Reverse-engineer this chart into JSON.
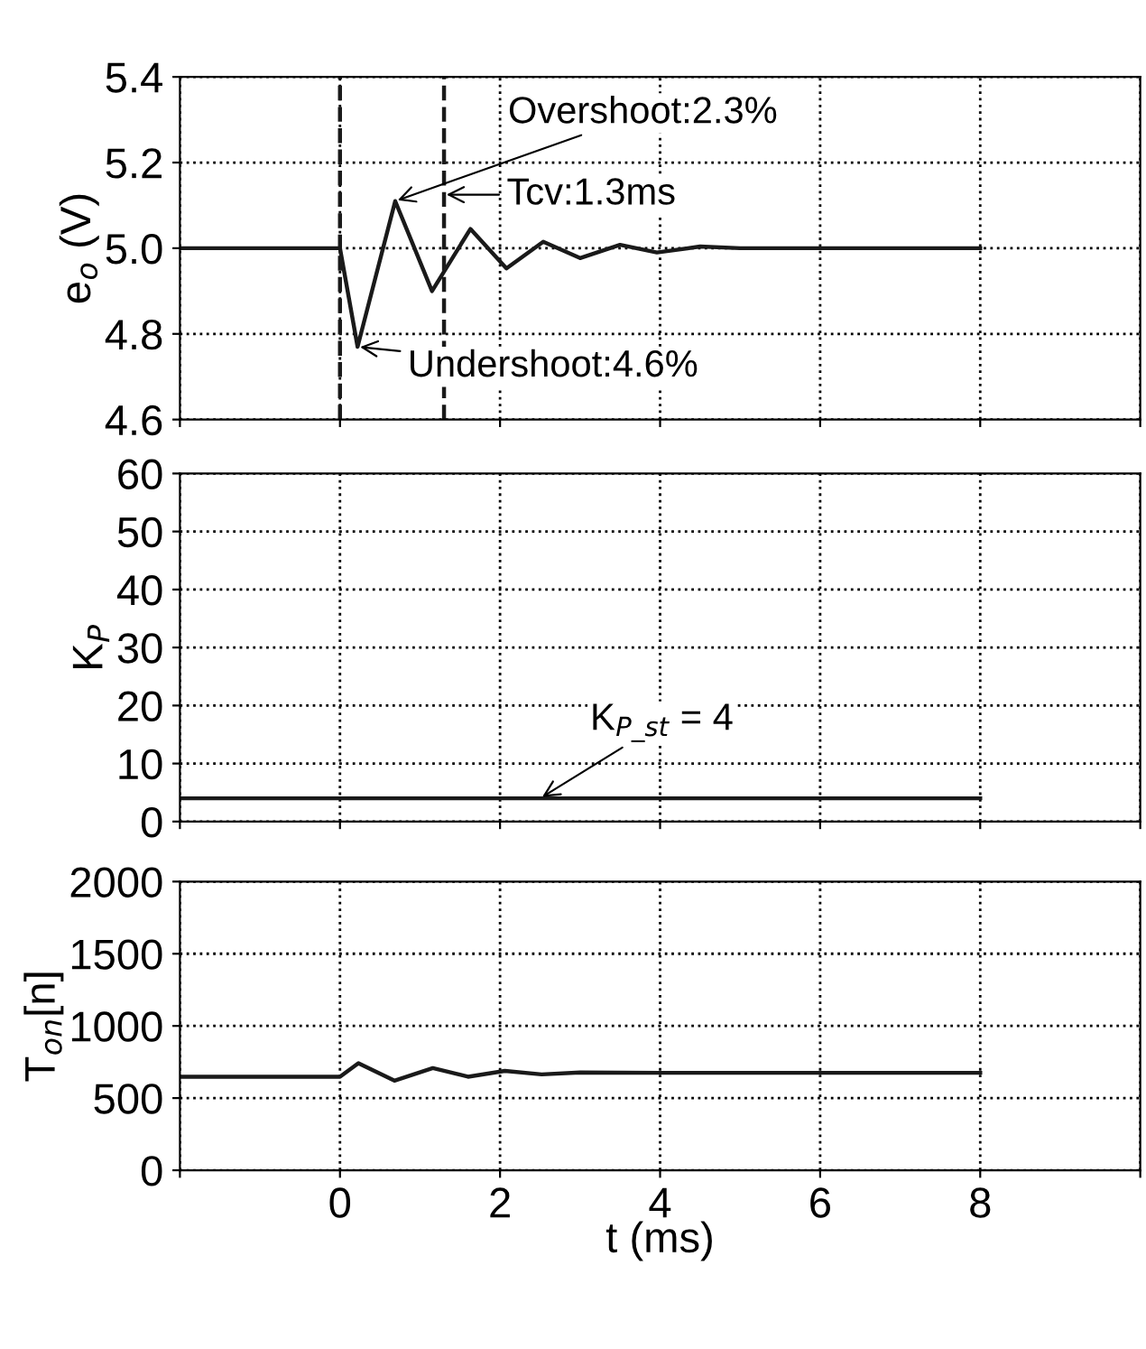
{
  "chart_data": [
    {
      "type": "line",
      "ylabel": "e$_{o}$ (V)",
      "xlim": [
        -2,
        10
      ],
      "xticks": [
        {
          "value": -2,
          "label": null
        },
        {
          "value": 0,
          "label": null
        },
        {
          "value": 2,
          "label": null
        },
        {
          "value": 4,
          "label": null
        },
        {
          "value": 6,
          "label": null
        },
        {
          "value": 8,
          "label": null
        },
        {
          "value": 10,
          "label": null
        }
      ],
      "ylim": [
        4.6,
        5.4
      ],
      "yticks": [
        {
          "value": 4.6,
          "label": "4.6"
        },
        {
          "value": 4.8,
          "label": "4.8"
        },
        {
          "value": 5.0,
          "label": "5.0"
        },
        {
          "value": 5.2,
          "label": "5.2"
        },
        {
          "value": 5.4,
          "label": "5.4"
        }
      ],
      "grid": true,
      "tick_labels": "y",
      "line_style": "solid",
      "marker": "none",
      "series": [
        {
          "color": "#1a1a1a",
          "x": [
            -2,
            0,
            0.22,
            0.69,
            1.15,
            1.63,
            2.08,
            2.54,
            3.0,
            3.5,
            3.96,
            4.5,
            5.0,
            6.0,
            8.0
          ],
          "values": [
            5.0,
            5.0,
            4.77,
            5.11,
            4.9,
            5.045,
            4.953,
            5.015,
            4.977,
            5.008,
            4.99,
            5.004,
            5.0,
            5.0,
            5.0
          ]
        }
      ],
      "ref_lines": [
        {
          "axis": "x",
          "value": 0,
          "line_style": "dashed",
          "color": "#1a1a1a"
        },
        {
          "axis": "x",
          "value": 1.3,
          "line_style": "dashed",
          "color": "#1a1a1a"
        }
      ],
      "annotations": [
        {
          "text": "Overshoot:2.3%",
          "x": 0.69,
          "y": 5.11
        },
        {
          "text": "Undershoot:4.6%",
          "x": 0.22,
          "y": 4.77
        },
        {
          "text": "Tcv:1.3ms",
          "x": 1.3,
          "y": 5.125
        }
      ]
    },
    {
      "type": "line",
      "ylabel": "K$_{P}$",
      "xlim": [
        -2,
        10
      ],
      "xticks": [
        {
          "value": -2,
          "label": null
        },
        {
          "value": 0,
          "label": null
        },
        {
          "value": 2,
          "label": null
        },
        {
          "value": 4,
          "label": null
        },
        {
          "value": 6,
          "label": null
        },
        {
          "value": 8,
          "label": null
        },
        {
          "value": 10,
          "label": null
        }
      ],
      "ylim": [
        0,
        60
      ],
      "yticks": [
        0,
        10,
        20,
        30,
        40,
        50,
        60
      ],
      "grid": true,
      "tick_labels": "y",
      "line_style": "solid",
      "marker": "none",
      "series": [
        {
          "color": "#1a1a1a",
          "x": [
            -2,
            8
          ],
          "values": [
            4,
            4
          ]
        }
      ],
      "annotations": [
        {
          "text": "K$_{P_st}$ = 4",
          "x": 2.5,
          "y": 4
        }
      ]
    },
    {
      "type": "line",
      "ylabel": "T$_{on}$[n]",
      "xlabel": "t (ms)",
      "xlim": [
        -2,
        10
      ],
      "xticks": [
        {
          "value": -2,
          "label": null
        },
        0,
        2,
        4,
        6,
        8,
        {
          "value": 10,
          "label": null
        }
      ],
      "ylim": [
        0,
        2000
      ],
      "yticks": [
        0,
        500,
        1000,
        1500,
        2000
      ],
      "grid": true,
      "line_style": "solid",
      "marker": "none",
      "series": [
        {
          "color": "#1a1a1a",
          "x": [
            -2,
            0,
            0.23,
            0.68,
            1.16,
            1.6,
            2.06,
            2.52,
            3.0,
            4.0,
            6.0,
            8.0
          ],
          "values": [
            648,
            648,
            742,
            621,
            708,
            648,
            688,
            664,
            678,
            675,
            675,
            675
          ]
        }
      ]
    }
  ]
}
